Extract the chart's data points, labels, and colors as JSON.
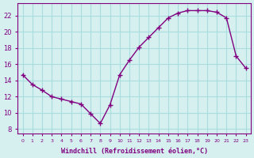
{
  "x": [
    0,
    1,
    2,
    3,
    4,
    5,
    6,
    7,
    8,
    9,
    10,
    11,
    12,
    13,
    14,
    15,
    16,
    17,
    18,
    19,
    20,
    21,
    22,
    23
  ],
  "y": [
    14.7,
    13.5,
    12.8,
    12.0,
    11.7,
    11.4,
    11.1,
    9.9,
    8.7,
    11.0,
    14.7,
    16.5,
    18.1,
    19.3,
    20.5,
    21.7,
    22.3,
    22.6,
    22.6,
    22.6,
    22.4,
    21.7,
    17.0,
    15.5
  ],
  "line_color": "#800080",
  "marker": "+",
  "marker_size": 5,
  "bg_color": "#d6f0f0",
  "grid_color": "#aadddd",
  "xlabel": "Windchill (Refroidissement éolien,°C)",
  "xlabel_color": "#800080",
  "ylabel_ticks": [
    8,
    10,
    12,
    14,
    16,
    18,
    20,
    22
  ],
  "xtick_labels": [
    "0",
    "1",
    "2",
    "3",
    "4",
    "5",
    "6",
    "7",
    "8",
    "9",
    "10",
    "11",
    "12",
    "13",
    "14",
    "15",
    "16",
    "17",
    "18",
    "19",
    "20",
    "21",
    "22",
    "23"
  ],
  "ylim": [
    7.5,
    23.5
  ],
  "xlim": [
    -0.5,
    23.5
  ],
  "tick_color": "#800080",
  "spine_color": "#800080"
}
